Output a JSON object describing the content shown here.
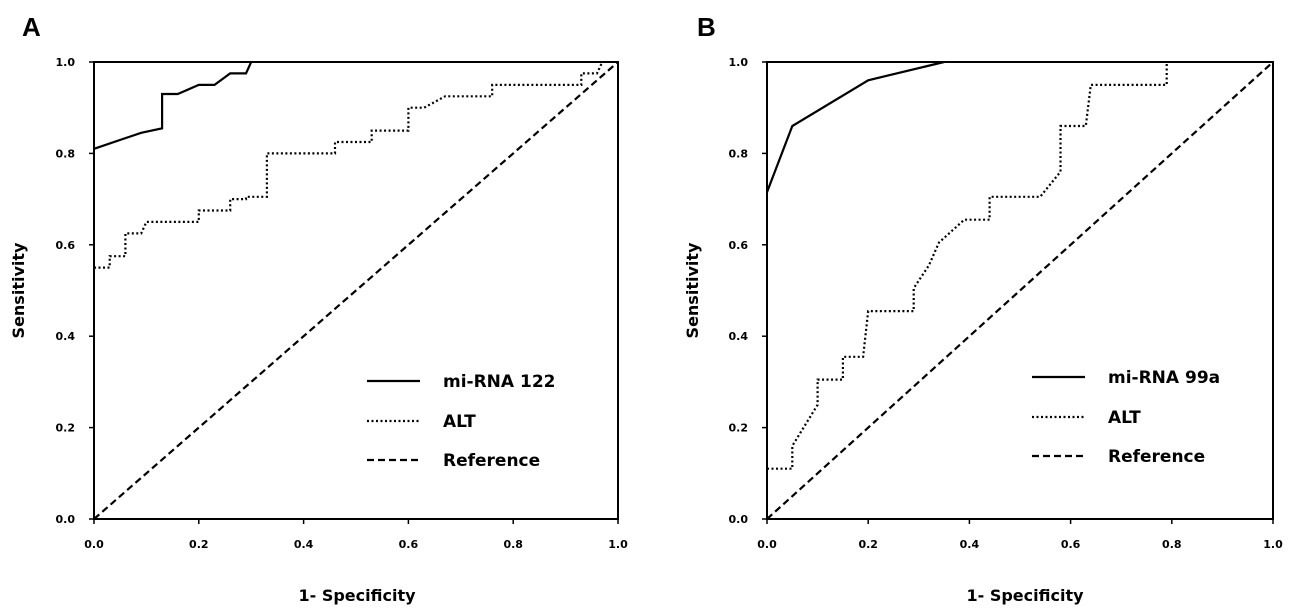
{
  "chart_data": [
    {
      "type": "line",
      "panel_label": "A",
      "xlabel": "1- Specificity",
      "ylabel": "Sensitivity",
      "xlim": [
        0,
        1
      ],
      "ylim": [
        0,
        1
      ],
      "x_ticks": [
        "0.0",
        "0.2",
        "0.4",
        "0.6",
        "0.8",
        "1.0"
      ],
      "y_ticks": [
        "0.0",
        "0.2",
        "0.4",
        "0.6",
        "0.8",
        "1.0"
      ],
      "grid": false,
      "legend_position": "bottom-right",
      "series": [
        {
          "name": "mi-RNA 122",
          "style": "solid",
          "points": [
            [
              0.0,
              0.81
            ],
            [
              0.09,
              0.845
            ],
            [
              0.13,
              0.855
            ],
            [
              0.13,
              0.93
            ],
            [
              0.16,
              0.93
            ],
            [
              0.2,
              0.95
            ],
            [
              0.23,
              0.95
            ],
            [
              0.26,
              0.975
            ],
            [
              0.29,
              0.975
            ],
            [
              0.3,
              1.0
            ]
          ]
        },
        {
          "name": "ALT",
          "style": "dotted",
          "points": [
            [
              0.0,
              0.55
            ],
            [
              0.03,
              0.55
            ],
            [
              0.03,
              0.575
            ],
            [
              0.06,
              0.575
            ],
            [
              0.06,
              0.625
            ],
            [
              0.09,
              0.625
            ],
            [
              0.1,
              0.65
            ],
            [
              0.2,
              0.65
            ],
            [
              0.2,
              0.675
            ],
            [
              0.26,
              0.675
            ],
            [
              0.26,
              0.7
            ],
            [
              0.29,
              0.7
            ],
            [
              0.29,
              0.705
            ],
            [
              0.33,
              0.705
            ],
            [
              0.33,
              0.8
            ],
            [
              0.46,
              0.8
            ],
            [
              0.46,
              0.825
            ],
            [
              0.53,
              0.825
            ],
            [
              0.53,
              0.85
            ],
            [
              0.6,
              0.85
            ],
            [
              0.6,
              0.9
            ],
            [
              0.63,
              0.9
            ],
            [
              0.67,
              0.925
            ],
            [
              0.76,
              0.925
            ],
            [
              0.76,
              0.95
            ],
            [
              0.93,
              0.95
            ],
            [
              0.93,
              0.975
            ],
            [
              0.96,
              0.975
            ],
            [
              0.97,
              1.0
            ]
          ]
        },
        {
          "name": "Reference",
          "style": "dashed",
          "points": [
            [
              0.0,
              0.0
            ],
            [
              1.0,
              1.0
            ]
          ]
        }
      ]
    },
    {
      "type": "line",
      "panel_label": "B",
      "xlabel": "1- Specificity",
      "ylabel": "Sensitivity",
      "xlim": [
        0,
        1
      ],
      "ylim": [
        0,
        1
      ],
      "x_ticks": [
        "0.0",
        "0.2",
        "0.4",
        "0.6",
        "0.8",
        "1.0"
      ],
      "y_ticks": [
        "0.0",
        "0.2",
        "0.4",
        "0.6",
        "0.8",
        "1.0"
      ],
      "grid": false,
      "legend_position": "bottom-right",
      "series": [
        {
          "name": "mi-RNA 99a",
          "style": "solid",
          "points": [
            [
              0.0,
              0.715
            ],
            [
              0.05,
              0.86
            ],
            [
              0.2,
              0.96
            ],
            [
              0.35,
              1.0
            ]
          ]
        },
        {
          "name": "ALT",
          "style": "dotted",
          "points": [
            [
              0.0,
              0.11
            ],
            [
              0.05,
              0.11
            ],
            [
              0.05,
              0.16
            ],
            [
              0.1,
              0.25
            ],
            [
              0.1,
              0.305
            ],
            [
              0.15,
              0.305
            ],
            [
              0.15,
              0.355
            ],
            [
              0.19,
              0.355
            ],
            [
              0.2,
              0.455
            ],
            [
              0.29,
              0.455
            ],
            [
              0.29,
              0.505
            ],
            [
              0.32,
              0.555
            ],
            [
              0.34,
              0.605
            ],
            [
              0.39,
              0.655
            ],
            [
              0.44,
              0.655
            ],
            [
              0.44,
              0.705
            ],
            [
              0.54,
              0.705
            ],
            [
              0.58,
              0.76
            ],
            [
              0.58,
              0.86
            ],
            [
              0.63,
              0.86
            ],
            [
              0.64,
              0.95
            ],
            [
              0.79,
              0.95
            ],
            [
              0.79,
              1.0
            ]
          ]
        },
        {
          "name": "Reference",
          "style": "dashed",
          "points": [
            [
              0.0,
              0.0
            ],
            [
              1.0,
              1.0
            ]
          ]
        }
      ]
    }
  ]
}
